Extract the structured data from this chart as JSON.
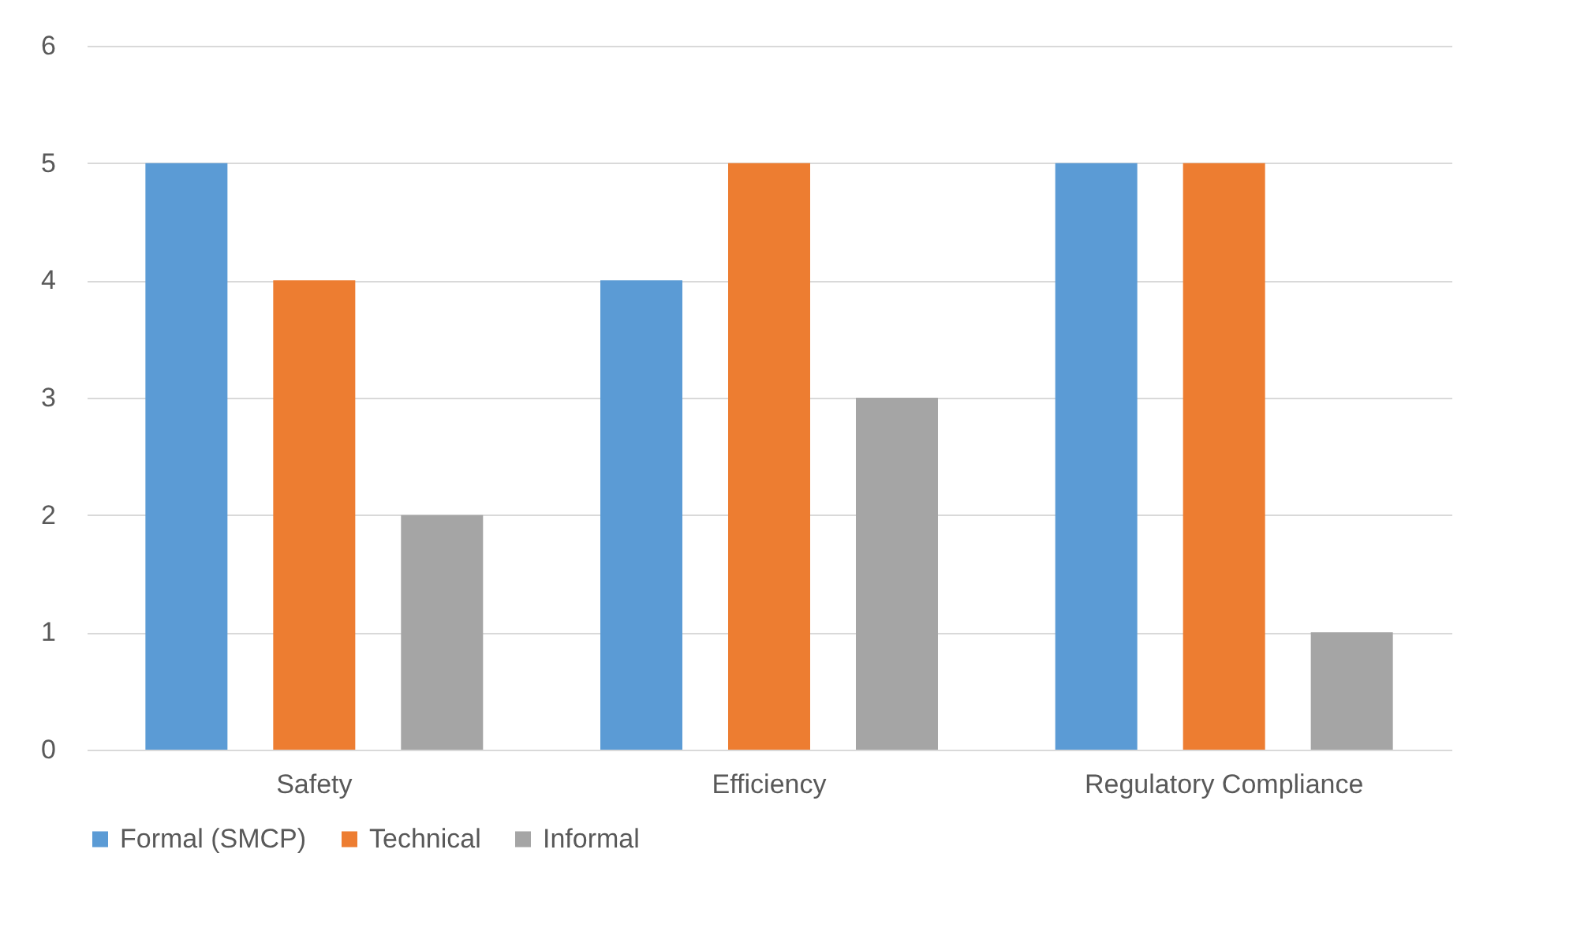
{
  "chart_data": {
    "type": "bar",
    "categories": [
      "Safety",
      "Efficiency",
      "Regulatory Compliance"
    ],
    "series": [
      {
        "name": "Formal (SMCP)",
        "color": "#5b9bd5",
        "values": [
          5,
          4,
          5
        ]
      },
      {
        "name": "Technical",
        "color": "#ed7d31",
        "values": [
          4,
          5,
          5
        ]
      },
      {
        "name": "Informal",
        "color": "#a5a5a5",
        "values": [
          2,
          3,
          1
        ]
      }
    ],
    "ylim": [
      0,
      6
    ],
    "yticks": [
      0,
      1,
      2,
      3,
      4,
      5,
      6
    ],
    "grid": "y",
    "legend": "bottom"
  }
}
